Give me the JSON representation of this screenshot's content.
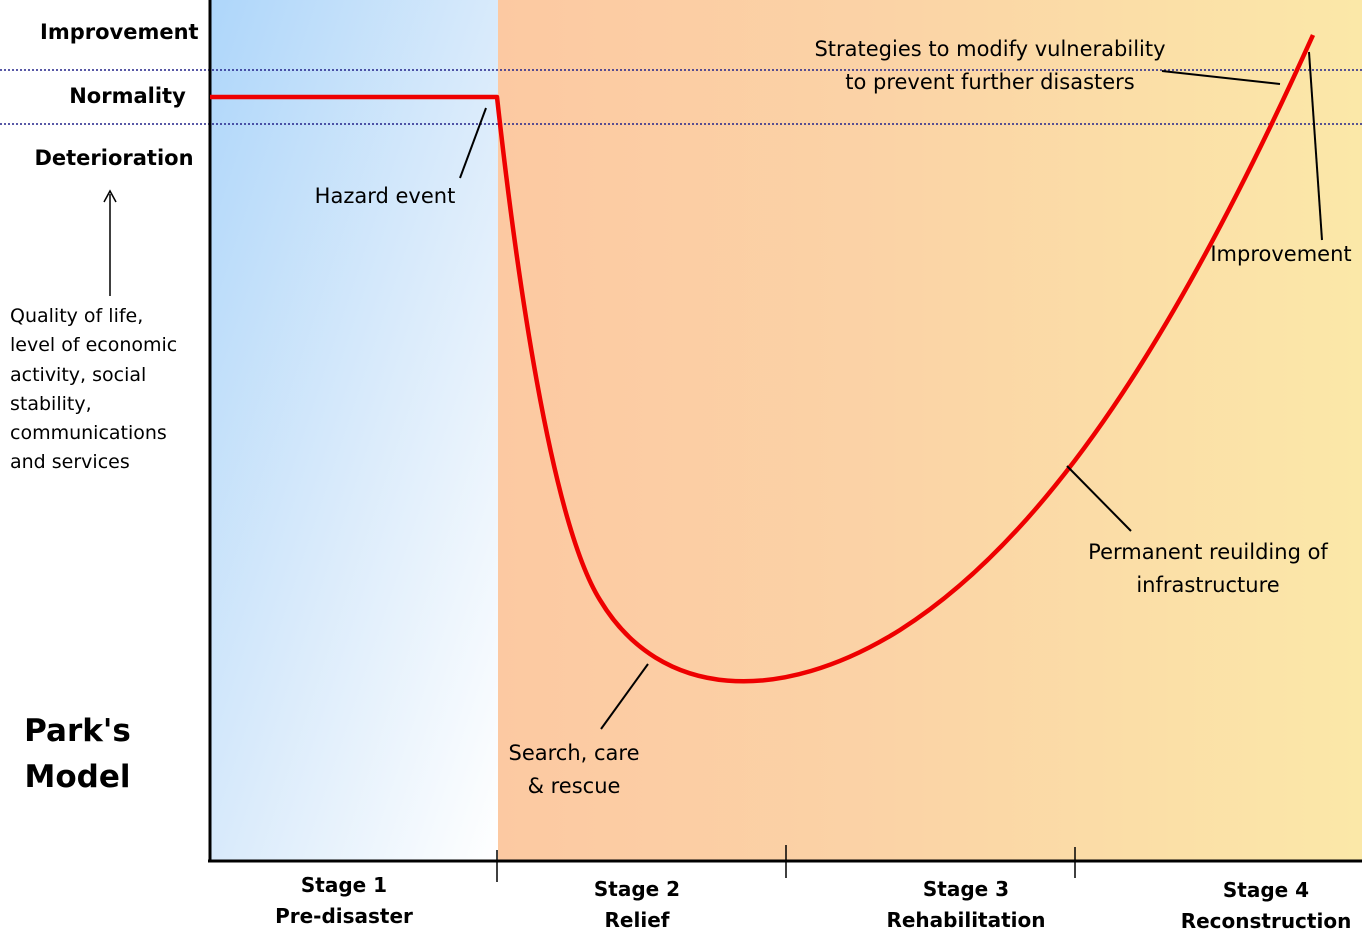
{
  "levels": {
    "improvement": "Improvement",
    "normality": "Normality",
    "deterioration": "Deterioration"
  },
  "y_axis_label": "Quality of life, level of economic activity, social stability, communications and services",
  "title": [
    "Park's",
    "Model"
  ],
  "annotations": {
    "hazard_event": "Hazard event",
    "strategies": [
      "Strategies to modify vulnerability",
      "to prevent further disasters"
    ],
    "improvement": "Improvement",
    "rebuilding": [
      "Permanent reuilding of",
      "infrastructure"
    ],
    "search": [
      "Search, care",
      "& rescue"
    ]
  },
  "stages": [
    {
      "name": "Stage 1",
      "label": "Pre-disaster"
    },
    {
      "name": "Stage 2",
      "label": "Relief"
    },
    {
      "name": "Stage 3",
      "label": "Rehabilitation"
    },
    {
      "name": "Stage 4",
      "label": "Reconstruction"
    }
  ],
  "colors": {
    "curve": "#ee0000",
    "stage1": "#aed6fa",
    "stage2": "#fcc9a2",
    "stage4": "#fbe8a8",
    "guide_line": "#22228a"
  }
}
